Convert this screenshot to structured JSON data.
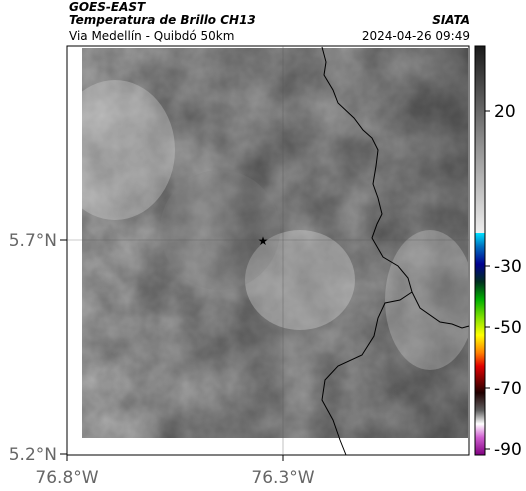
{
  "header": {
    "source": "GOES-EAST",
    "title": "Temperatura de Brillo CH13",
    "subtitle": "Via Medellín - Quibdó 50km",
    "organization": "SIATA",
    "datetime": "2024-04-26 09:49"
  },
  "map": {
    "lat_ticks": [
      {
        "value": 5.7,
        "label": "5.7°N"
      },
      {
        "value": 5.2,
        "label": "5.2°N"
      }
    ],
    "lon_ticks": [
      {
        "value": -76.8,
        "label": "76.8°W"
      },
      {
        "value": -76.3,
        "label": "76.3°W"
      }
    ],
    "marker": {
      "symbol": "★",
      "name": "site-marker"
    }
  },
  "colorbar": {
    "ticks": [
      {
        "value": 20,
        "label": "20"
      },
      {
        "value": -30,
        "label": "-30"
      },
      {
        "value": -50,
        "label": "-50"
      },
      {
        "value": -70,
        "label": "-70"
      },
      {
        "value": -90,
        "label": "-90"
      }
    ]
  }
}
